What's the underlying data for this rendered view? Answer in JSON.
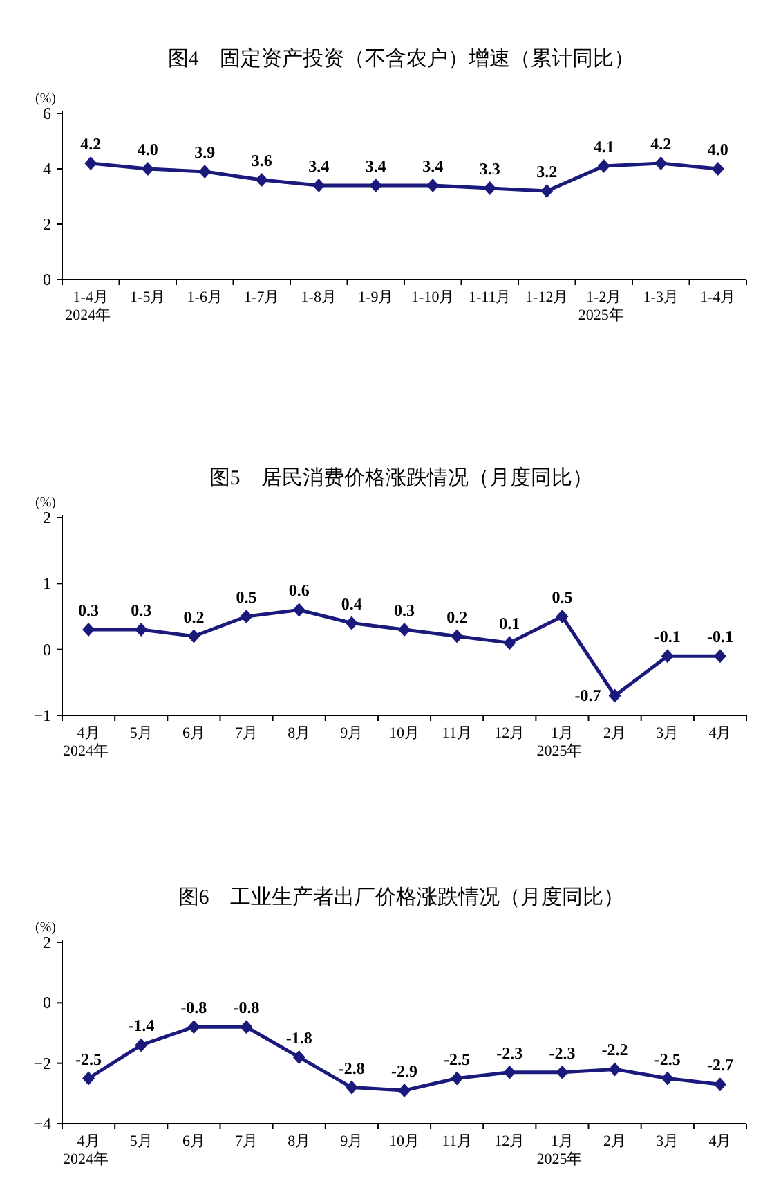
{
  "chart_data": [
    {
      "type": "line",
      "title": "图4　固定资产投资（不含农户）增速（累计同比）",
      "ylabel": "(%)",
      "categories": [
        "1-4月\n2024年",
        "1-5月",
        "1-6月",
        "1-7月",
        "1-8月",
        "1-9月",
        "1-10月",
        "1-11月",
        "1-12月",
        "1-2月\n2025年",
        "1-3月",
        "1-4月"
      ],
      "series": [
        {
          "color": "#1a1a7c",
          "values": [
            4.2,
            4.0,
            3.9,
            3.6,
            3.4,
            3.4,
            3.4,
            3.3,
            3.2,
            4.1,
            4.2,
            4.0
          ],
          "value_labels": [
            "4.2",
            "4.0",
            "3.9",
            "3.6",
            "3.4",
            "3.4",
            "3.4",
            "3.3",
            "3.2",
            "4.1",
            "4.2",
            "4.0"
          ]
        }
      ],
      "ylim": [
        0,
        6
      ],
      "yticks": [
        0,
        2,
        4,
        6
      ],
      "marker": "diamond"
    },
    {
      "type": "line",
      "title": "图5　居民消费价格涨跌情况（月度同比）",
      "ylabel": "(%)",
      "categories": [
        "4月\n2024年",
        "5月",
        "6月",
        "7月",
        "8月",
        "9月",
        "10月",
        "11月",
        "12月",
        "1月\n2025年",
        "2月",
        "3月",
        "4月"
      ],
      "series": [
        {
          "color": "#1a1a7c",
          "values": [
            0.3,
            0.3,
            0.2,
            0.5,
            0.6,
            0.4,
            0.3,
            0.2,
            0.1,
            0.5,
            -0.7,
            -0.1,
            -0.1
          ]
        }
      ],
      "ylim": [
        -1,
        2
      ],
      "yticks": [
        -1,
        0,
        1,
        2
      ],
      "data_labels": true,
      "marker": "diamond"
    },
    {
      "type": "line",
      "title": "图6　工业生产者出厂价格涨跌情况（月度同比）",
      "ylabel": "(%)",
      "categories": [
        "4月\n2024年",
        "5月",
        "6月",
        "7月",
        "8月",
        "9月",
        "10月",
        "11月",
        "12月",
        "1月\n2025年",
        "2月",
        "3月",
        "4月"
      ],
      "series": [
        {
          "color": "#1a1a7c",
          "values": [
            -2.5,
            -1.4,
            -0.8,
            -0.8,
            -1.8,
            -2.8,
            -2.9,
            -2.5,
            -2.3,
            -2.3,
            -2.2,
            -2.5,
            -2.7
          ]
        }
      ],
      "ylim": [
        -4,
        2
      ],
      "yticks": [
        -4,
        -2,
        0,
        2
      ],
      "data_labels": true,
      "marker": "diamond"
    }
  ]
}
